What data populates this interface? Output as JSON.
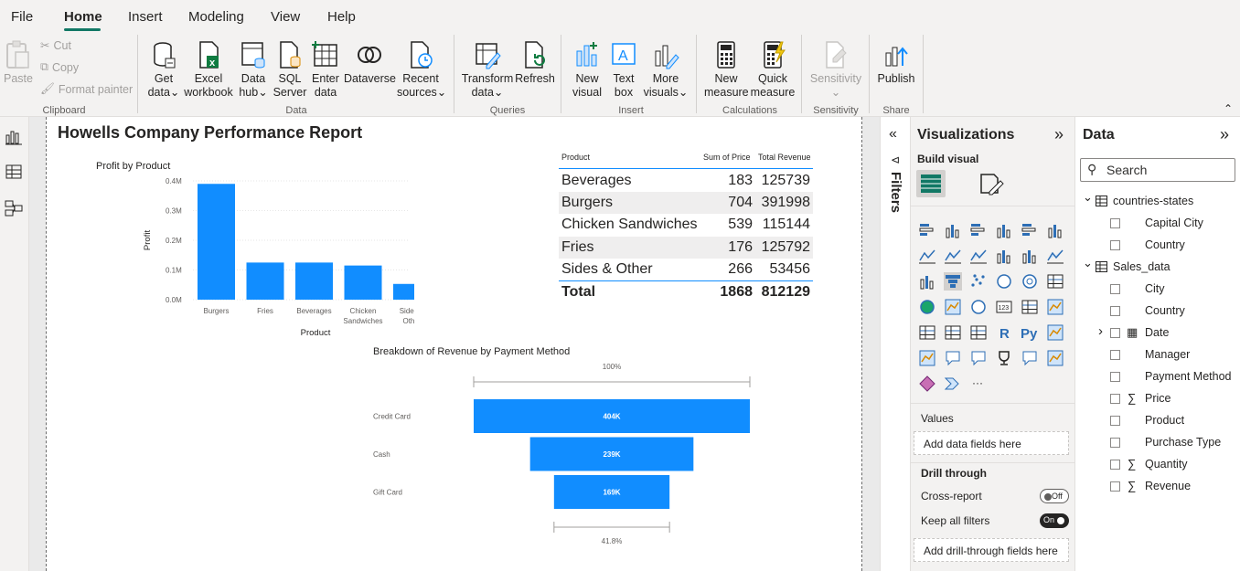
{
  "menu": {
    "items": [
      "File",
      "Home",
      "Insert",
      "Modeling",
      "View",
      "Help"
    ]
  },
  "ribbon": {
    "clipboard": {
      "paste": "Paste",
      "cut": "Cut",
      "copy": "Copy",
      "format_painter": "Format painter",
      "group": "Clipboard"
    },
    "data": {
      "get_data": [
        "Get",
        "data"
      ],
      "excel": [
        "Excel",
        "workbook"
      ],
      "data_hub": [
        "Data",
        "hub"
      ],
      "sql": [
        "SQL",
        "Server"
      ],
      "enter_data": [
        "Enter",
        "data"
      ],
      "dataverse": "Dataverse",
      "recent": [
        "Recent",
        "sources"
      ],
      "group": "Data"
    },
    "queries": {
      "transform": [
        "Transform",
        "data"
      ],
      "refresh": "Refresh",
      "group": "Queries"
    },
    "insert": {
      "new_visual": [
        "New",
        "visual"
      ],
      "text_box": [
        "Text",
        "box"
      ],
      "more_visuals": [
        "More",
        "visuals"
      ],
      "group": "Insert"
    },
    "calculations": {
      "new_measure": [
        "New",
        "measure"
      ],
      "quick_measure": [
        "Quick",
        "measure"
      ],
      "group": "Calculations"
    },
    "sensitivity": {
      "label": "Sensitivity",
      "group": "Sensitivity"
    },
    "share": {
      "publish": "Publish",
      "group": "Share"
    }
  },
  "report": {
    "title": "Howells Company Performance Report"
  },
  "table": {
    "headers": [
      "Product",
      "Sum of Price",
      "Total Revenue"
    ],
    "rows": [
      {
        "product": "Beverages",
        "price": "183",
        "revenue": "125739"
      },
      {
        "product": "Burgers",
        "price": "704",
        "revenue": "391998"
      },
      {
        "product": "Chicken Sandwiches",
        "price": "539",
        "revenue": "115144"
      },
      {
        "product": "Fries",
        "price": "176",
        "revenue": "125792"
      },
      {
        "product": "Sides & Other",
        "price": "266",
        "revenue": "53456"
      }
    ],
    "total": {
      "label": "Total",
      "price": "1868",
      "revenue": "812129"
    }
  },
  "chart_data": [
    {
      "type": "bar",
      "title": "Profit by Product",
      "xlabel": "Product",
      "ylabel": "Profit",
      "categories": [
        "Burgers",
        "Fries",
        "Beverages",
        "Chicken Sandwiches",
        "Sides & Other"
      ],
      "category_lines": [
        [
          "Burgers"
        ],
        [
          "Fries"
        ],
        [
          "Beverages"
        ],
        [
          "Chicken",
          "Sandwiches"
        ],
        [
          "Sides &",
          "Other"
        ]
      ],
      "values": [
        0.39,
        0.125,
        0.125,
        0.115,
        0.053
      ],
      "yticks": [
        "0.0M",
        "0.1M",
        "0.2M",
        "0.3M",
        "0.4M"
      ],
      "ylim": [
        0,
        0.4
      ],
      "color": "#118dff",
      "grid": true
    },
    {
      "type": "funnel",
      "title": "Breakdown of Revenue by Payment Method",
      "categories": [
        "Credit Card",
        "Cash",
        "Gift Card"
      ],
      "values": [
        404,
        239,
        169
      ],
      "value_labels": [
        "404K",
        "239K",
        "169K"
      ],
      "top_percent": "100%",
      "bottom_percent": "41.8%",
      "color": "#118dff"
    }
  ],
  "filters": {
    "label": "Filters"
  },
  "viz_pane": {
    "title": "Visualizations",
    "build_visual": "Build visual",
    "values_label": "Values",
    "values_drop": "Add data fields here",
    "drill_through": "Drill through",
    "cross_report": "Cross-report",
    "cross_report_state": "Off",
    "keep_filters": "Keep all filters",
    "keep_filters_state": "On",
    "drill_drop": "Add drill-through fields here",
    "more": "···"
  },
  "data_pane": {
    "title": "Data",
    "search_placeholder": "Search",
    "tables": [
      {
        "name": "countries-states",
        "fields": [
          "Capital City",
          "Country"
        ]
      },
      {
        "name": "Sales_data",
        "fields": [
          "City",
          "Country",
          "Date",
          "Manager",
          "Payment Method",
          "Price",
          "Product",
          "Purchase Type",
          "Quantity",
          "Revenue"
        ]
      }
    ]
  },
  "colors": {
    "accent": "#117865",
    "bar": "#118dff"
  }
}
